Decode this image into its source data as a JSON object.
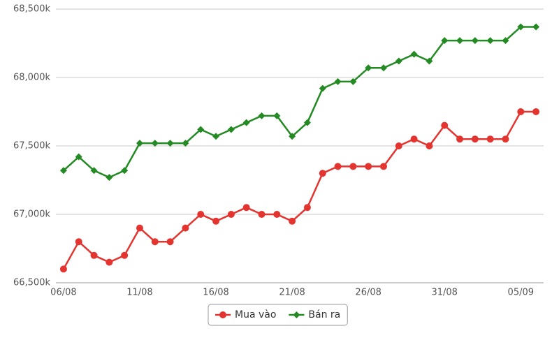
{
  "chart_data": {
    "type": "line",
    "categories": [
      "06/08",
      null,
      null,
      null,
      null,
      "11/08",
      null,
      null,
      null,
      null,
      "16/08",
      null,
      null,
      null,
      null,
      "21/08",
      null,
      null,
      null,
      null,
      "26/08",
      null,
      null,
      null,
      null,
      "31/08",
      null,
      null,
      null,
      null,
      "05/09",
      null
    ],
    "series": [
      {
        "name": "Mua vào",
        "color": "#e3342f",
        "marker": "circle",
        "values": [
          66600,
          66800,
          66700,
          66650,
          66700,
          66900,
          66800,
          66800,
          66900,
          67000,
          66950,
          67000,
          67050,
          67000,
          67000,
          66950,
          67050,
          67300,
          67350,
          67350,
          67350,
          67350,
          67500,
          67550,
          67500,
          67650,
          67550,
          67550,
          67550,
          67550,
          67750,
          67750
        ]
      },
      {
        "name": "Bán ra",
        "color": "#248a24",
        "marker": "diamond",
        "values": [
          67320,
          67420,
          67320,
          67270,
          67320,
          67520,
          67520,
          67520,
          67520,
          67620,
          67570,
          67620,
          67670,
          67720,
          67720,
          67570,
          67670,
          67920,
          67970,
          67970,
          68070,
          68070,
          68120,
          68170,
          68120,
          68270,
          68270,
          68270,
          68270,
          68270,
          68370,
          68370
        ]
      }
    ],
    "ylim": [
      66500,
      68500
    ],
    "yticks": [
      {
        "value": 66500,
        "label": "66,500k"
      },
      {
        "value": 67000,
        "label": "67,000k"
      },
      {
        "value": 67500,
        "label": "67,500k"
      },
      {
        "value": 68000,
        "label": "68,000k"
      },
      {
        "value": 68500,
        "label": "68,500k"
      }
    ],
    "grid": true,
    "legend": "bottom"
  }
}
